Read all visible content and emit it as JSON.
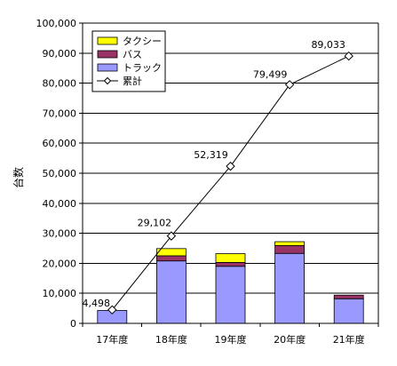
{
  "chart_data": {
    "type": "bar",
    "categories": [
      "17年度",
      "18年度",
      "19年度",
      "20年度",
      "21年度"
    ],
    "series": [
      {
        "name": "トラック",
        "color": "#9999ff",
        "values": [
          4300,
          20800,
          19000,
          23300,
          8200
        ]
      },
      {
        "name": "バス",
        "color": "#993366",
        "values": [
          0,
          1700,
          1300,
          2600,
          1200
        ]
      },
      {
        "name": "タクシー",
        "color": "#ffff00",
        "values": [
          0,
          2400,
          2900,
          1300,
          0
        ]
      }
    ],
    "line_series": {
      "name": "累計",
      "color": "#000000",
      "marker": "diamond",
      "values": [
        4498,
        29102,
        52319,
        79499,
        89033
      ],
      "data_labels": [
        "4,498",
        "29,102",
        "52,319",
        "79,499",
        "89,033"
      ]
    },
    "ylabel": "台数",
    "xlabel": "",
    "ylim": [
      0,
      100000
    ],
    "yticks": [
      0,
      10000,
      20000,
      30000,
      40000,
      50000,
      60000,
      70000,
      80000,
      90000,
      100000
    ],
    "ytick_labels": [
      "0",
      "10,000",
      "20,000",
      "30,000",
      "40,000",
      "50,000",
      "60,000",
      "70,000",
      "80,000",
      "90,000",
      "100,000"
    ],
    "grid": true,
    "legend": {
      "position": "top-left",
      "items": [
        "タクシー",
        "バス",
        "トラック",
        "累計"
      ]
    }
  }
}
